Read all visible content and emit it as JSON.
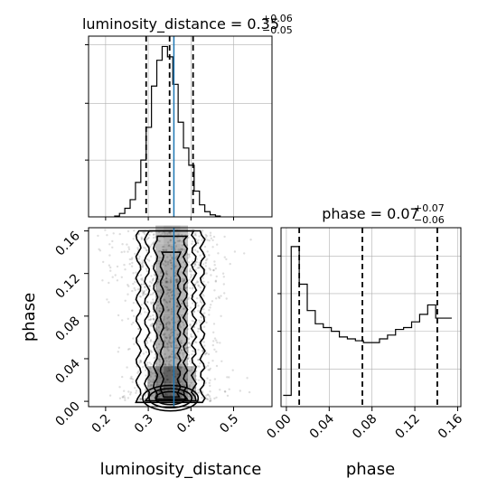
{
  "chart_data": {
    "type": "corner",
    "colors": {
      "truth": "#1f77b4",
      "lines": "#000000",
      "grid": "#b0b0b0"
    },
    "parameters": [
      {
        "name": "luminosity_distance",
        "range": [
          0.16,
          0.59
        ],
        "ticks": [
          "0.2",
          "0.3",
          "0.4",
          "0.5"
        ],
        "tick_values": [
          0.2,
          0.3,
          0.4,
          0.5
        ]
      },
      {
        "name": "phase",
        "range": [
          -0.005,
          0.163
        ],
        "ticks": [
          "0.00",
          "0.04",
          "0.08",
          "0.12",
          "0.16"
        ],
        "tick_values": [
          0.0,
          0.04,
          0.08,
          0.12,
          0.16
        ]
      }
    ],
    "titles": {
      "luminosity_distance": {
        "text": "luminosity_distance = 0.35",
        "upper": "+0.06",
        "lower": "−0.05"
      },
      "phase": {
        "text": "phase = 0.07",
        "upper": "+0.07",
        "lower": "−0.06"
      }
    },
    "truth_x": 0.36,
    "marginal_1": {
      "quantiles": [
        0.295,
        0.35,
        0.405
      ],
      "bins_start": 0.22,
      "bin_width": 0.0125,
      "counts": [
        0.005,
        0.02,
        0.05,
        0.1,
        0.2,
        0.33,
        0.52,
        0.76,
        0.91,
        0.99,
        0.93,
        0.77,
        0.55,
        0.4,
        0.3,
        0.15,
        0.07,
        0.03,
        0.012,
        0.005
      ],
      "yticks": [
        0.0,
        0.33,
        0.66,
        1.0
      ]
    },
    "marginal_2": {
      "quantiles": [
        0.012,
        0.071,
        0.141
      ],
      "bins_start": -0.003,
      "bin_width": 0.0075,
      "counts": [
        0.06,
        0.85,
        0.65,
        0.51,
        0.44,
        0.42,
        0.4,
        0.37,
        0.36,
        0.35,
        0.34,
        0.34,
        0.36,
        0.38,
        0.41,
        0.42,
        0.45,
        0.49,
        0.54,
        0.47,
        0.47
      ],
      "yticks": [
        0.0,
        0.2,
        0.4,
        0.6,
        0.8
      ]
    }
  }
}
